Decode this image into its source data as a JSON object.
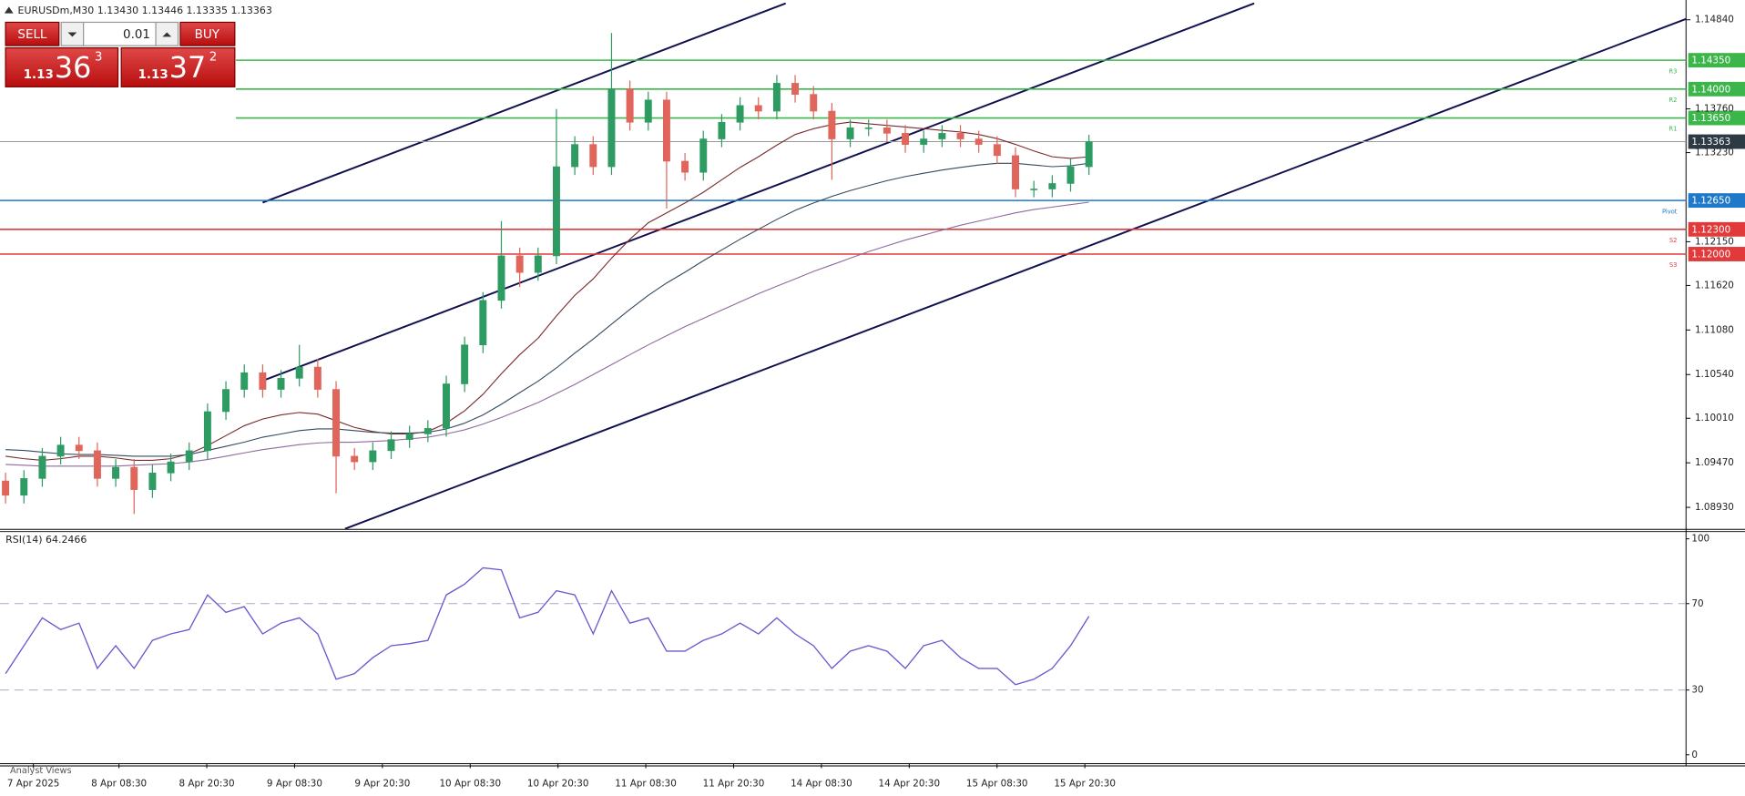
{
  "header": {
    "text": "EURUSDm,M30  1.13430 1.13446 1.13335 1.13363"
  },
  "trade_panel": {
    "sell": "SELL",
    "buy": "BUY",
    "lot": "0.01",
    "sell_price": {
      "big": "1.13",
      "pips": "36",
      "point": "3"
    },
    "buy_price": {
      "big": "1.13",
      "pips": "37",
      "point": "2"
    }
  },
  "time_labels": [
    "7 Apr 2025",
    "8 Apr 08:30",
    "8 Apr 20:30",
    "9 Apr 08:30",
    "9 Apr 20:30",
    "10 Apr 08:30",
    "10 Apr 20:30",
    "11 Apr 08:30",
    "11 Apr 20:30",
    "14 Apr 08:30",
    "14 Apr 20:30",
    "15 Apr 08:30",
    "15 Apr 20:30"
  ],
  "footer": {
    "tab": "Analyst Views"
  },
  "chart_data": [
    {
      "type": "candlestick",
      "up_color": "#2e9b62",
      "down_color": "#e0655b",
      "ylim": [
        1.0867,
        1.1508
      ],
      "yticks": [
        {
          "value": 1.1484,
          "label": "1.14840"
        },
        {
          "value": 1.1376,
          "label": "1.13760"
        },
        {
          "value": 1.1323,
          "label": "1.13230"
        },
        {
          "value": 1.1215,
          "label": "1.12150"
        },
        {
          "value": 1.1162,
          "label": "1.11620"
        },
        {
          "value": 1.1108,
          "label": "1.11080"
        },
        {
          "value": 1.1054,
          "label": "1.10540"
        },
        {
          "value": 1.1001,
          "label": "1.10010"
        },
        {
          "value": 1.0947,
          "label": "1.09470"
        },
        {
          "value": 1.0893,
          "label": "1.08930"
        }
      ],
      "open": [
        1.0925,
        1.09077,
        1.0928,
        1.0955,
        1.09685,
        1.09617,
        1.0928,
        1.09415,
        1.09145,
        1.09347,
        1.09482,
        1.09617,
        1.1009,
        1.1036,
        1.10562,
        1.1036,
        1.10495,
        1.1063,
        1.1036,
        1.0955,
        1.09482,
        1.09617,
        1.09752,
        1.0982,
        1.09887,
        1.10427,
        1.10899,
        1.11439,
        1.11979,
        1.11777,
        1.11979,
        1.13059,
        1.13329,
        1.13059,
        1.14003,
        1.13598,
        1.13868,
        1.13126,
        1.12991,
        1.13396,
        1.13598,
        1.13801,
        1.13733,
        1.14071,
        1.13936,
        1.13733,
        1.13396,
        1.13531,
        1.13531,
        1.13464,
        1.13329,
        1.13396,
        1.13464,
        1.13396,
        1.13329,
        1.13194,
        1.12789,
        1.12789,
        1.12856,
        1.13059
      ],
      "high": [
        1.0935,
        1.0938,
        1.0965,
        1.09785,
        1.09785,
        1.09717,
        1.09515,
        1.09515,
        1.09447,
        1.09582,
        1.09717,
        1.1019,
        1.1046,
        1.10662,
        1.10662,
        1.10595,
        1.109,
        1.1073,
        1.1046,
        1.0965,
        1.09717,
        1.09852,
        1.0992,
        1.09987,
        1.10527,
        1.10999,
        1.11539,
        1.124,
        1.12079,
        1.12079,
        1.1376,
        1.13429,
        1.13429,
        1.1468,
        1.14103,
        1.13968,
        1.13968,
        1.13226,
        1.13496,
        1.13698,
        1.13901,
        1.13901,
        1.14171,
        1.14171,
        1.14036,
        1.13833,
        1.13631,
        1.13631,
        1.13631,
        1.13564,
        1.13496,
        1.13564,
        1.13564,
        1.13496,
        1.13429,
        1.13294,
        1.12889,
        1.12956,
        1.13159,
        1.13446
      ],
      "low": [
        1.08977,
        1.08977,
        1.0918,
        1.0945,
        1.09517,
        1.0918,
        1.0918,
        1.0885,
        1.09045,
        1.09247,
        1.09382,
        1.09517,
        1.0999,
        1.1026,
        1.1026,
        1.1026,
        1.10395,
        1.1026,
        1.091,
        1.09382,
        1.09382,
        1.09517,
        1.09652,
        1.0972,
        1.09787,
        1.10327,
        1.10799,
        1.11339,
        1.116,
        1.11677,
        1.11879,
        1.12959,
        1.12959,
        1.12959,
        1.13498,
        1.13498,
        1.1255,
        1.12891,
        1.12891,
        1.13296,
        1.13498,
        1.13633,
        1.13633,
        1.13836,
        1.13633,
        1.129,
        1.13296,
        1.13431,
        1.13364,
        1.13229,
        1.13229,
        1.13296,
        1.13296,
        1.13229,
        1.13094,
        1.12689,
        1.12689,
        1.12689,
        1.12756,
        1.12959
      ],
      "close": [
        1.09077,
        1.0928,
        1.0955,
        1.09685,
        1.09617,
        1.0928,
        1.09415,
        1.09145,
        1.09347,
        1.09482,
        1.09617,
        1.1009,
        1.1036,
        1.10562,
        1.1036,
        1.10495,
        1.1063,
        1.1036,
        1.0955,
        1.09482,
        1.09617,
        1.09752,
        1.0982,
        1.09887,
        1.10427,
        1.10899,
        1.11439,
        1.11979,
        1.11777,
        1.11979,
        1.13059,
        1.13329,
        1.13059,
        1.14003,
        1.13598,
        1.13868,
        1.13126,
        1.12991,
        1.13396,
        1.13598,
        1.13801,
        1.13733,
        1.14071,
        1.13936,
        1.13733,
        1.13396,
        1.13531,
        1.13531,
        1.13464,
        1.13329,
        1.13396,
        1.13464,
        1.13396,
        1.13329,
        1.13194,
        1.12789,
        1.12789,
        1.12856,
        1.13059,
        1.13363
      ],
      "moving_averages": [
        {
          "color": "#7a2a2a",
          "values": [
            1.0955,
            1.0952,
            1.095,
            1.0952,
            1.0955,
            1.0955,
            1.0953,
            1.095,
            1.095,
            1.0952,
            1.0958,
            1.0968,
            1.098,
            1.0992,
            1.1,
            1.1005,
            1.1008,
            1.1006,
            1.0998,
            1.099,
            1.0985,
            1.0982,
            1.0982,
            1.0985,
            1.0995,
            1.101,
            1.103,
            1.1055,
            1.1078,
            1.1098,
            1.1125,
            1.115,
            1.117,
            1.1195,
            1.1218,
            1.1238,
            1.125,
            1.1262,
            1.1275,
            1.129,
            1.1305,
            1.1318,
            1.1332,
            1.1345,
            1.1352,
            1.1357,
            1.136,
            1.1358,
            1.1356,
            1.1354,
            1.1352,
            1.135,
            1.1348,
            1.1345,
            1.134,
            1.1333,
            1.1325,
            1.1318,
            1.1316,
            1.1318
          ]
        },
        {
          "color": "#34495e",
          "values": [
            1.0963,
            1.0962,
            1.096,
            1.0958,
            1.0957,
            1.0957,
            1.0956,
            1.0955,
            1.0955,
            1.0955,
            1.0957,
            1.0962,
            1.0967,
            1.0972,
            1.0978,
            1.0982,
            1.0986,
            1.0988,
            1.0988,
            1.0986,
            1.0984,
            1.0983,
            1.0983,
            1.0984,
            1.0988,
            1.0995,
            1.1005,
            1.1018,
            1.1032,
            1.1046,
            1.1062,
            1.108,
            1.1097,
            1.1115,
            1.1133,
            1.115,
            1.1165,
            1.1178,
            1.1192,
            1.1205,
            1.1218,
            1.123,
            1.1242,
            1.1253,
            1.1262,
            1.127,
            1.1277,
            1.1283,
            1.1289,
            1.1294,
            1.1298,
            1.1302,
            1.1305,
            1.1308,
            1.131,
            1.131,
            1.1308,
            1.1306,
            1.1307,
            1.131
          ]
        },
        {
          "color": "#8e6a9e",
          "values": [
            1.0945,
            1.0944,
            1.0943,
            1.0943,
            1.0943,
            1.0943,
            1.0943,
            1.0944,
            1.0945,
            1.0946,
            1.0948,
            1.0951,
            1.0955,
            1.0959,
            1.0963,
            1.0966,
            1.0969,
            1.0971,
            1.0972,
            1.0972,
            1.0973,
            1.0974,
            1.0976,
            1.0978,
            1.0982,
            1.0987,
            1.0994,
            1.1002,
            1.1011,
            1.102,
            1.1031,
            1.1042,
            1.1054,
            1.1066,
            1.1078,
            1.109,
            1.1101,
            1.1112,
            1.1122,
            1.1132,
            1.1142,
            1.1152,
            1.1161,
            1.117,
            1.1179,
            1.1187,
            1.1195,
            1.1203,
            1.121,
            1.1217,
            1.1223,
            1.1229,
            1.1235,
            1.124,
            1.1245,
            1.125,
            1.1254,
            1.1257,
            1.126,
            1.1263
          ]
        }
      ],
      "levels": [
        {
          "value": 1.1435,
          "label": "1.14350",
          "name": "R3",
          "color": "#3cb64a",
          "from_panel": true
        },
        {
          "value": 1.14,
          "label": "1.14000",
          "name": "R2",
          "color": "#3cb64a",
          "from_panel": true
        },
        {
          "value": 1.1365,
          "label": "1.13650",
          "name": "R1",
          "color": "#3cb64a",
          "from_panel": true
        },
        {
          "value": 1.13363,
          "label": "1.13363",
          "color": "#9a9a9a",
          "label_color": "#2c3a44"
        },
        {
          "value": 1.1265,
          "label": "1.12650",
          "name": "Pivot",
          "color": "#1f78c8"
        },
        {
          "value": 1.123,
          "label": "1.12300",
          "name": "S2",
          "color": "#e03a3a"
        },
        {
          "value": 1.12,
          "label": "1.12000",
          "name": "S3",
          "color": "#e03a3a"
        }
      ]
    },
    {
      "type": "line",
      "title": "RSI(14) 64.2466",
      "color": "#6a5acd",
      "ylim": [
        0,
        100
      ],
      "yticks": [
        0,
        30,
        70,
        100
      ],
      "values": [
        37.6,
        50.5,
        63.4,
        58,
        61,
        40,
        50.5,
        40,
        53,
        56,
        58,
        74,
        66,
        68.6,
        56,
        61,
        63.4,
        56,
        35,
        37.6,
        45,
        50.5,
        51.5,
        53,
        74,
        79,
        86.6,
        85.6,
        63.4,
        66,
        76,
        74,
        56,
        76,
        61,
        63.4,
        48,
        48,
        53,
        56,
        61,
        56,
        63.4,
        56,
        50.5,
        40,
        48,
        50.5,
        48,
        40,
        50.5,
        53,
        45,
        40,
        40,
        32.5,
        35,
        40,
        50.5,
        64.2
      ]
    }
  ]
}
